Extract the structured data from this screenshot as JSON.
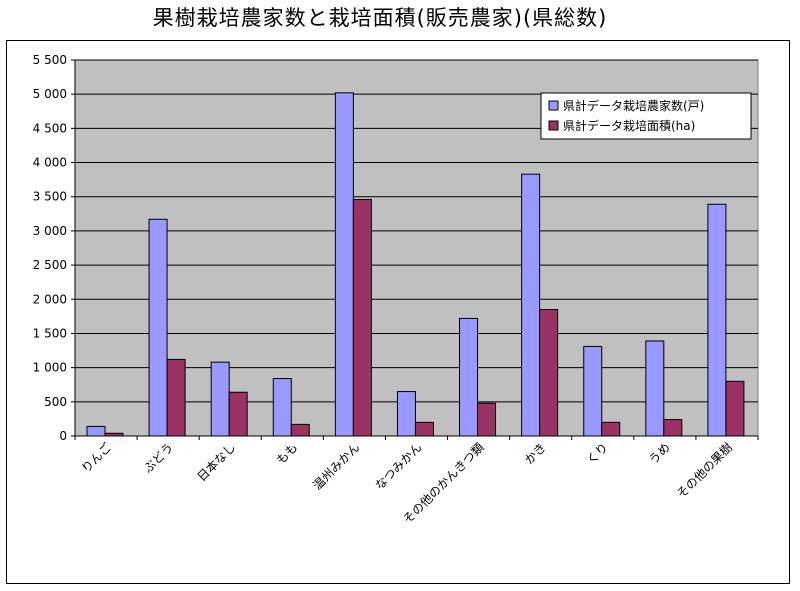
{
  "chart_data": {
    "type": "bar",
    "title": "果樹栽培農家数と栽培面積(販売農家)(県総数)",
    "categories": [
      "りんご",
      "ぶどう",
      "日本なし",
      "もも",
      "温州みかん",
      "なつみかん",
      "その他のかんきつ類",
      "かき",
      "くり",
      "うめ",
      "その他の果樹"
    ],
    "series": [
      {
        "name": "県計データ栽培農家数(戸)",
        "color": "#9999ff",
        "values": [
          140,
          3170,
          1080,
          840,
          5020,
          650,
          1720,
          3830,
          1310,
          1390,
          3390
        ]
      },
      {
        "name": "県計データ栽培面積(ha)",
        "color": "#993366",
        "values": [
          40,
          1120,
          640,
          170,
          3460,
          200,
          480,
          1850,
          200,
          240,
          800
        ]
      }
    ],
    "yticks": [
      "0",
      "500",
      "1 000",
      "1 500",
      "2 000",
      "2 500",
      "3 000",
      "3 500",
      "4 000",
      "4 500",
      "5 000",
      "5 500"
    ],
    "ylim": [
      0,
      5500
    ],
    "grid": true,
    "legend_position": "top-right",
    "plot_background": "#c0c0c0"
  }
}
